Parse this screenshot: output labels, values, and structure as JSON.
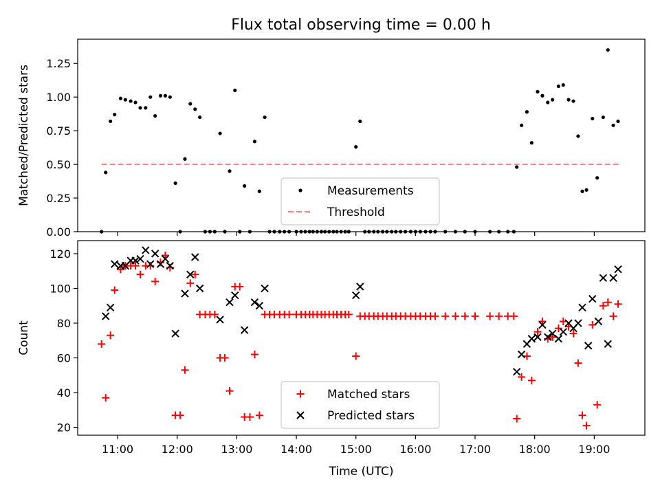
{
  "figure": {
    "title": "Flux total observing time = 0.00 h"
  },
  "chart_data": [
    {
      "type": "scatter",
      "title": "Flux total observing time = 0.00 h",
      "xlabel": "",
      "ylabel": "Matched/Predicted stars",
      "xlim": [
        10.33,
        19.85
      ],
      "ylim": [
        0.0,
        1.43
      ],
      "yticks": [
        0.0,
        0.25,
        0.5,
        0.75,
        1.0,
        1.25
      ],
      "ytick_labels": [
        "0.00",
        "0.25",
        "0.50",
        "0.75",
        "1.00",
        "1.25"
      ],
      "xticks": [
        11,
        12,
        13,
        14,
        15,
        16,
        17,
        18,
        19
      ],
      "legend": "lower-center",
      "series": [
        {
          "name": "Measurements",
          "marker": "dot",
          "color": "#000000",
          "points": [
            [
              10.73,
              0.0
            ],
            [
              10.8,
              0.44
            ],
            [
              10.88,
              0.82
            ],
            [
              10.95,
              0.87
            ],
            [
              11.05,
              0.99
            ],
            [
              11.13,
              0.98
            ],
            [
              11.22,
              0.97
            ],
            [
              11.3,
              0.96
            ],
            [
              11.38,
              0.92
            ],
            [
              11.47,
              0.92
            ],
            [
              11.55,
              1.0
            ],
            [
              11.63,
              0.86
            ],
            [
              11.72,
              1.01
            ],
            [
              11.8,
              1.01
            ],
            [
              11.88,
              1.0
            ],
            [
              11.97,
              0.36
            ],
            [
              12.05,
              0.0
            ],
            [
              12.13,
              0.54
            ],
            [
              12.22,
              0.95
            ],
            [
              12.3,
              0.91
            ],
            [
              12.38,
              0.85
            ],
            [
              12.47,
              0.0
            ],
            [
              12.55,
              0.0
            ],
            [
              12.63,
              0.0
            ],
            [
              12.72,
              0.73
            ],
            [
              12.8,
              0.0
            ],
            [
              12.88,
              0.45
            ],
            [
              12.97,
              1.05
            ],
            [
              13.05,
              0.0
            ],
            [
              13.13,
              0.34
            ],
            [
              13.22,
              0.0
            ],
            [
              13.3,
              0.67
            ],
            [
              13.38,
              0.3
            ],
            [
              13.47,
              0.85
            ],
            [
              13.55,
              0.0
            ],
            [
              13.63,
              0.0
            ],
            [
              13.72,
              0.0
            ],
            [
              13.8,
              0.0
            ],
            [
              13.88,
              0.0
            ],
            [
              14.0,
              0.0
            ],
            [
              14.08,
              0.0
            ],
            [
              14.15,
              0.0
            ],
            [
              14.22,
              0.0
            ],
            [
              14.28,
              0.0
            ],
            [
              14.35,
              0.0
            ],
            [
              14.42,
              0.0
            ],
            [
              14.48,
              0.0
            ],
            [
              14.55,
              0.0
            ],
            [
              14.62,
              0.0
            ],
            [
              14.68,
              0.0
            ],
            [
              14.75,
              0.0
            ],
            [
              14.82,
              0.0
            ],
            [
              14.88,
              0.0
            ],
            [
              15.0,
              0.63
            ],
            [
              15.07,
              0.82
            ],
            [
              15.15,
              0.0
            ],
            [
              15.22,
              0.0
            ],
            [
              15.3,
              0.0
            ],
            [
              15.37,
              0.0
            ],
            [
              15.45,
              0.0
            ],
            [
              15.52,
              0.0
            ],
            [
              15.6,
              0.0
            ],
            [
              15.67,
              0.0
            ],
            [
              15.75,
              0.0
            ],
            [
              15.83,
              0.0
            ],
            [
              15.92,
              0.0
            ],
            [
              16.0,
              0.0
            ],
            [
              16.08,
              0.0
            ],
            [
              16.17,
              0.0
            ],
            [
              16.25,
              0.0
            ],
            [
              16.33,
              0.0
            ],
            [
              16.5,
              0.0
            ],
            [
              16.67,
              0.0
            ],
            [
              16.83,
              0.0
            ],
            [
              17.0,
              0.0
            ],
            [
              17.25,
              0.0
            ],
            [
              17.4,
              0.0
            ],
            [
              17.55,
              0.0
            ],
            [
              17.65,
              0.0
            ],
            [
              17.7,
              0.48
            ],
            [
              17.78,
              0.79
            ],
            [
              17.87,
              0.89
            ],
            [
              17.95,
              0.66
            ],
            [
              18.05,
              1.04
            ],
            [
              18.13,
              1.01
            ],
            [
              18.22,
              0.96
            ],
            [
              18.3,
              0.98
            ],
            [
              18.4,
              1.08
            ],
            [
              18.48,
              1.09
            ],
            [
              18.57,
              0.98
            ],
            [
              18.65,
              0.97
            ],
            [
              18.73,
              0.71
            ],
            [
              18.8,
              0.3
            ],
            [
              18.87,
              0.31
            ],
            [
              18.97,
              0.84
            ],
            [
              19.05,
              0.4
            ],
            [
              19.15,
              0.85
            ],
            [
              19.23,
              1.35
            ],
            [
              19.32,
              0.79
            ],
            [
              19.4,
              0.82
            ]
          ]
        },
        {
          "name": "Threshold",
          "line": "dashed",
          "color": "#ff7f7f",
          "points": [
            [
              10.73,
              0.5
            ],
            [
              19.42,
              0.5
            ]
          ]
        }
      ]
    },
    {
      "type": "scatter",
      "title": "",
      "xlabel": "Time (UTC)",
      "ylabel": "Count",
      "xlim": [
        10.33,
        19.85
      ],
      "ylim": [
        15.5,
        127.5
      ],
      "yticks": [
        20,
        40,
        60,
        80,
        100,
        120
      ],
      "ytick_labels": [
        "20",
        "40",
        "60",
        "80",
        "100",
        "120"
      ],
      "xticks": [
        11,
        12,
        13,
        14,
        15,
        16,
        17,
        18,
        19
      ],
      "xtick_labels": [
        "11:00",
        "12:00",
        "13:00",
        "14:00",
        "15:00",
        "16:00",
        "17:00",
        "18:00",
        "19:00"
      ],
      "legend": "lower-center",
      "series": [
        {
          "name": "Matched stars",
          "marker": "plus",
          "color": "#ff0000",
          "points": [
            [
              10.73,
              68
            ],
            [
              10.8,
              37
            ],
            [
              10.88,
              73
            ],
            [
              10.95,
              99
            ],
            [
              11.05,
              111
            ],
            [
              11.13,
              113
            ],
            [
              11.22,
              113
            ],
            [
              11.3,
              113
            ],
            [
              11.38,
              108
            ],
            [
              11.47,
              113
            ],
            [
              11.55,
              113
            ],
            [
              11.63,
              104
            ],
            [
              11.72,
              115
            ],
            [
              11.8,
              119
            ],
            [
              11.88,
              112
            ],
            [
              11.97,
              27
            ],
            [
              12.05,
              27
            ],
            [
              12.13,
              53
            ],
            [
              12.22,
              103
            ],
            [
              12.3,
              108
            ],
            [
              12.38,
              85
            ],
            [
              12.47,
              85
            ],
            [
              12.55,
              85
            ],
            [
              12.63,
              85
            ],
            [
              12.72,
              60
            ],
            [
              12.8,
              60
            ],
            [
              12.88,
              41
            ],
            [
              12.97,
              101
            ],
            [
              13.05,
              101
            ],
            [
              13.13,
              26
            ],
            [
              13.22,
              26
            ],
            [
              13.3,
              62
            ],
            [
              13.38,
              27
            ],
            [
              13.47,
              85
            ],
            [
              13.55,
              85
            ],
            [
              13.63,
              85
            ],
            [
              13.72,
              85
            ],
            [
              13.8,
              85
            ],
            [
              13.88,
              85
            ],
            [
              14.0,
              85
            ],
            [
              14.08,
              85
            ],
            [
              14.15,
              85
            ],
            [
              14.22,
              85
            ],
            [
              14.28,
              85
            ],
            [
              14.35,
              85
            ],
            [
              14.42,
              85
            ],
            [
              14.48,
              85
            ],
            [
              14.55,
              85
            ],
            [
              14.62,
              85
            ],
            [
              14.68,
              85
            ],
            [
              14.75,
              85
            ],
            [
              14.82,
              85
            ],
            [
              14.88,
              85
            ],
            [
              15.0,
              61
            ],
            [
              15.07,
              84
            ],
            [
              15.15,
              84
            ],
            [
              15.22,
              84
            ],
            [
              15.3,
              84
            ],
            [
              15.37,
              84
            ],
            [
              15.45,
              84
            ],
            [
              15.52,
              84
            ],
            [
              15.6,
              84
            ],
            [
              15.67,
              84
            ],
            [
              15.75,
              84
            ],
            [
              15.83,
              84
            ],
            [
              15.92,
              84
            ],
            [
              16.0,
              84
            ],
            [
              16.08,
              84
            ],
            [
              16.17,
              84
            ],
            [
              16.25,
              84
            ],
            [
              16.33,
              84
            ],
            [
              16.5,
              84
            ],
            [
              16.67,
              84
            ],
            [
              16.83,
              84
            ],
            [
              17.0,
              84
            ],
            [
              17.25,
              84
            ],
            [
              17.4,
              84
            ],
            [
              17.55,
              84
            ],
            [
              17.65,
              84
            ],
            [
              17.7,
              25
            ],
            [
              17.78,
              49
            ],
            [
              17.87,
              61
            ],
            [
              17.95,
              47
            ],
            [
              18.05,
              75
            ],
            [
              18.13,
              81
            ],
            [
              18.22,
              71
            ],
            [
              18.3,
              72
            ],
            [
              18.4,
              77
            ],
            [
              18.48,
              81
            ],
            [
              18.57,
              78
            ],
            [
              18.65,
              74
            ],
            [
              18.73,
              57
            ],
            [
              18.8,
              27
            ],
            [
              18.87,
              21
            ],
            [
              18.97,
              79
            ],
            [
              19.05,
              33
            ],
            [
              19.15,
              90
            ],
            [
              19.23,
              92
            ],
            [
              19.32,
              84
            ],
            [
              19.4,
              91
            ]
          ]
        },
        {
          "name": "Predicted stars",
          "marker": "x",
          "color": "#000000",
          "points": [
            [
              10.8,
              84
            ],
            [
              10.88,
              89
            ],
            [
              10.95,
              114
            ],
            [
              11.05,
              113
            ],
            [
              11.13,
              113
            ],
            [
              11.22,
              116
            ],
            [
              11.3,
              116
            ],
            [
              11.38,
              117
            ],
            [
              11.47,
              122
            ],
            [
              11.55,
              114
            ],
            [
              11.63,
              120
            ],
            [
              11.72,
              114
            ],
            [
              11.8,
              117
            ],
            [
              11.88,
              113
            ],
            [
              11.97,
              74
            ],
            [
              12.13,
              97
            ],
            [
              12.22,
              108
            ],
            [
              12.3,
              118
            ],
            [
              12.38,
              100
            ],
            [
              12.72,
              82
            ],
            [
              12.88,
              92
            ],
            [
              12.97,
              96
            ],
            [
              13.13,
              76
            ],
            [
              13.3,
              92
            ],
            [
              13.38,
              90
            ],
            [
              13.47,
              100
            ],
            [
              15.0,
              96
            ],
            [
              15.07,
              101
            ],
            [
              17.7,
              52
            ],
            [
              17.78,
              62
            ],
            [
              17.87,
              68
            ],
            [
              17.95,
              71
            ],
            [
              18.05,
              72
            ],
            [
              18.13,
              79
            ],
            [
              18.22,
              72
            ],
            [
              18.3,
              74
            ],
            [
              18.4,
              71
            ],
            [
              18.48,
              75
            ],
            [
              18.57,
              80
            ],
            [
              18.65,
              77
            ],
            [
              18.73,
              80
            ],
            [
              18.8,
              89
            ],
            [
              18.9,
              67
            ],
            [
              18.97,
              94
            ],
            [
              19.07,
              81
            ],
            [
              19.15,
              106
            ],
            [
              19.23,
              68
            ],
            [
              19.32,
              106
            ],
            [
              19.4,
              111
            ]
          ]
        }
      ]
    }
  ]
}
